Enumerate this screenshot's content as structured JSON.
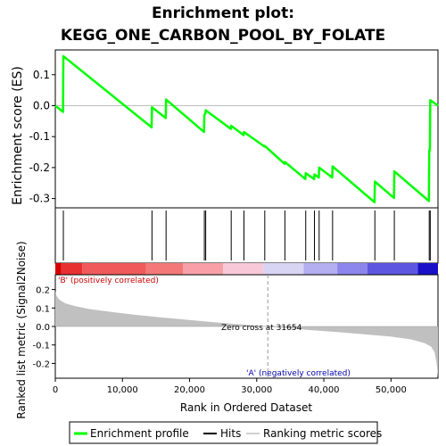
{
  "chart_data": {
    "type": "line",
    "title_line1": "Enrichment plot:",
    "title_line2": "KEGG_ONE_CARBON_POOL_BY_FOLATE",
    "es_ylabel": "Enrichment score (ES)",
    "metric_ylabel": "Ranked list metric (Signal2Noise)",
    "xlabel": "Rank in Ordered Dataset",
    "xlim": [
      0,
      57000
    ],
    "x_ticks": [
      0,
      10000,
      20000,
      30000,
      40000,
      50000
    ],
    "x_tick_labels": [
      "0",
      "10,000",
      "20,000",
      "30,000",
      "40,000",
      "50,000"
    ],
    "es_ylim": [
      -0.33,
      0.18
    ],
    "es_ticks": [
      -0.3,
      -0.2,
      -0.1,
      0.0,
      0.1
    ],
    "es_tick_labels": [
      "-0.3",
      "-0.2",
      "-0.1",
      "0.0",
      "0.1"
    ],
    "metric_ylim": [
      -0.28,
      0.28
    ],
    "metric_ticks": [
      -0.2,
      -0.1,
      0.0,
      0.1,
      0.2
    ],
    "metric_tick_labels": [
      "-0.2",
      "-0.1",
      "0.0",
      "0.1",
      "0.2"
    ],
    "hits": [
      1200,
      14400,
      16500,
      22200,
      22400,
      26200,
      28100,
      31200,
      34200,
      37300,
      38600,
      39300,
      41300,
      47600,
      50500,
      55700,
      55850
    ],
    "es_curve": {
      "x": [
        0,
        1150,
        1200,
        14350,
        14400,
        16450,
        16500,
        22150,
        22200,
        22350,
        22400,
        26150,
        26200,
        28050,
        28100,
        31150,
        31200,
        34150,
        34200,
        37250,
        37300,
        38550,
        38600,
        39250,
        39300,
        41250,
        41300,
        47550,
        47600,
        50450,
        50500,
        55650,
        55700,
        55800,
        55850,
        57000
      ],
      "y": [
        0.0,
        -0.02,
        0.16,
        -0.07,
        -0.005,
        -0.04,
        0.02,
        -0.085,
        -0.03,
        -0.025,
        -0.015,
        -0.075,
        -0.065,
        -0.095,
        -0.085,
        -0.132,
        -0.13,
        -0.188,
        -0.182,
        -0.237,
        -0.218,
        -0.237,
        -0.222,
        -0.232,
        -0.2,
        -0.232,
        -0.196,
        -0.312,
        -0.245,
        -0.298,
        -0.212,
        -0.308,
        -0.145,
        -0.145,
        0.018,
        0.0
      ]
    },
    "metric_curve": {
      "x": [
        0,
        200,
        600,
        1500,
        3000,
        5000,
        8000,
        12000,
        16000,
        20000,
        24000,
        28000,
        31654,
        35000,
        38000,
        42000,
        46000,
        50000,
        53000,
        55000,
        56000,
        56500,
        56800,
        57000
      ],
      "y": [
        0.19,
        0.165,
        0.145,
        0.125,
        0.11,
        0.095,
        0.08,
        0.063,
        0.048,
        0.035,
        0.022,
        0.01,
        0.0,
        -0.01,
        -0.02,
        -0.03,
        -0.042,
        -0.055,
        -0.07,
        -0.09,
        -0.11,
        -0.14,
        -0.2,
        -0.27
      ]
    },
    "zero_cross_rank": 31654,
    "zero_cross_label": "Zero cross at 31654",
    "pos_label": "'B' (positively correlated)",
    "neg_label": "'A' (negatively correlated)",
    "heat_segments": [
      {
        "x0": 0,
        "x1": 900,
        "color": "#d40000"
      },
      {
        "x0": 900,
        "x1": 4000,
        "color": "#e83030"
      },
      {
        "x0": 4000,
        "x1": 13500,
        "color": "#f05a5a"
      },
      {
        "x0": 13500,
        "x1": 19000,
        "color": "#f37878"
      },
      {
        "x0": 19000,
        "x1": 25000,
        "color": "#f7a0a8"
      },
      {
        "x0": 25000,
        "x1": 31000,
        "color": "#f9c8d8"
      },
      {
        "x0": 31000,
        "x1": 37000,
        "color": "#d8d4f4"
      },
      {
        "x0": 37000,
        "x1": 42000,
        "color": "#b2aef0"
      },
      {
        "x0": 42000,
        "x1": 46500,
        "color": "#8c86ec"
      },
      {
        "x0": 46500,
        "x1": 54000,
        "color": "#5d56e0"
      },
      {
        "x0": 54000,
        "x1": 57000,
        "color": "#1a10c8"
      }
    ],
    "legend": [
      "Enrichment profile",
      "Hits",
      "Ranking metric scores"
    ],
    "colors": {
      "es": "#00ff00",
      "hits": "#000000",
      "metric": "#c0c0c0",
      "pos_text": "#cc0000",
      "neg_text": "#0000aa"
    }
  }
}
